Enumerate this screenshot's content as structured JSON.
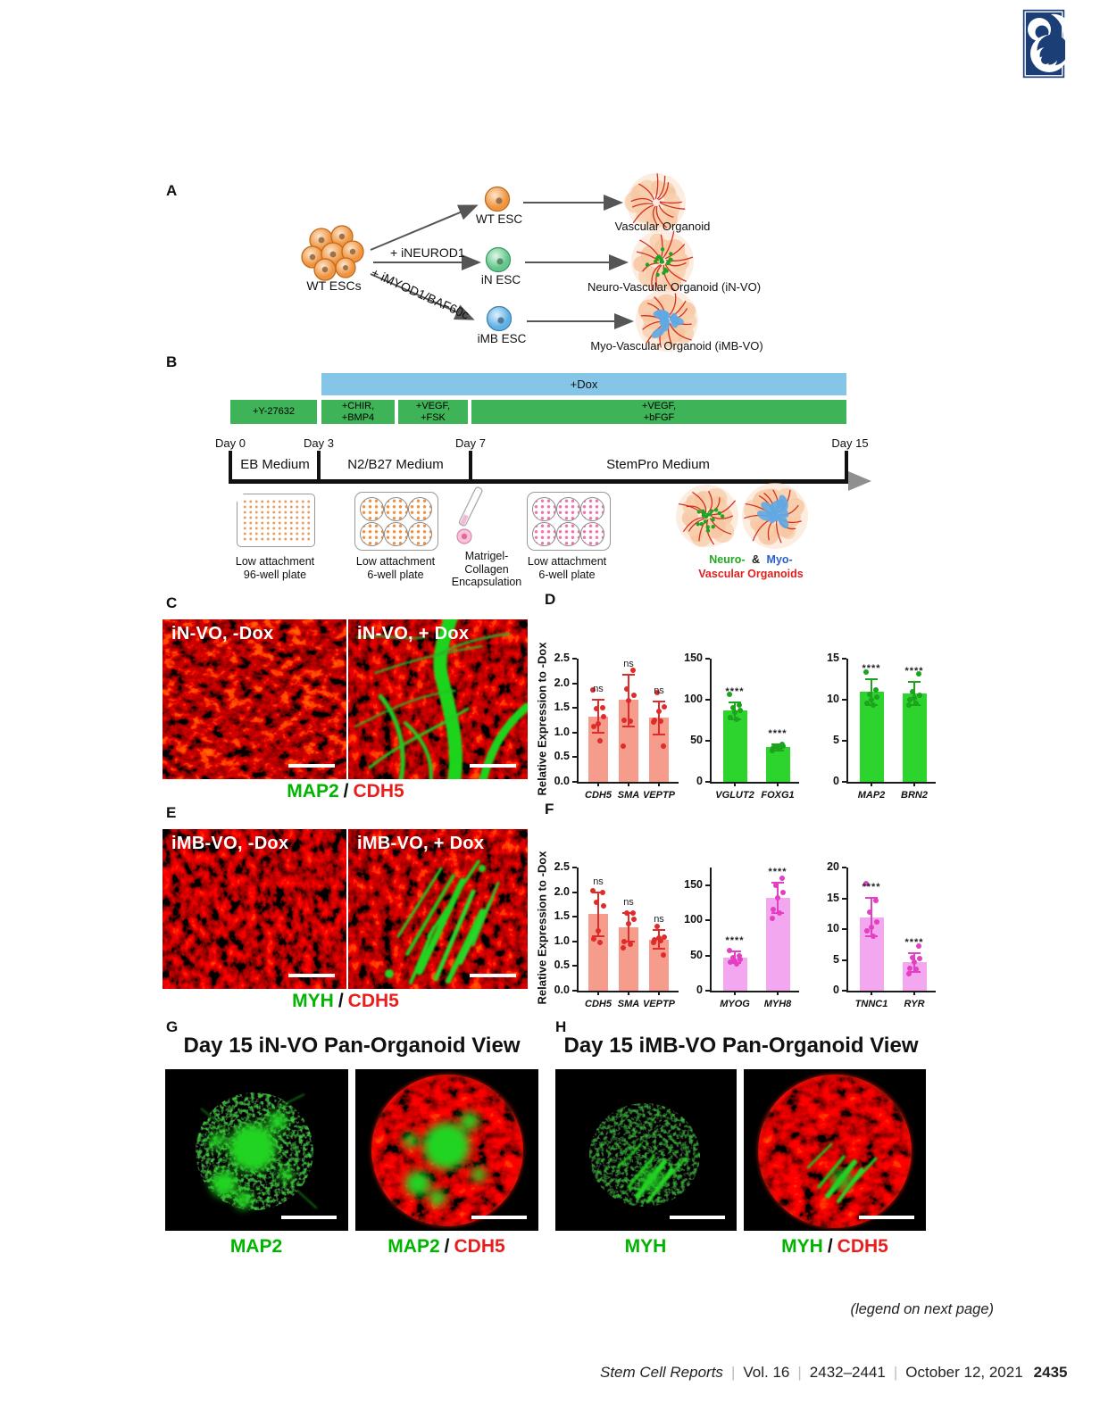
{
  "panels": {
    "A": {
      "label": "A",
      "source_label": "WT ESCs",
      "treatment_labels": [
        "+ iNEUROD1",
        "+ iMYOD1/BAF60c"
      ],
      "cell_labels": [
        "WT ESC",
        "iN ESC",
        "iMB ESC"
      ],
      "organoid_labels": [
        "Vascular Organoid",
        "Neuro-Vascular Organoid (iN-VO)",
        "Myo-Vascular Organoid (iMB-VO)"
      ]
    },
    "B": {
      "label": "B",
      "dox_label": "+Dox",
      "treatments": [
        {
          "lines": [
            "+Y-27632"
          ]
        },
        {
          "lines": [
            "+CHIR,",
            "+BMP4"
          ]
        },
        {
          "lines": [
            "+VEGF,",
            "+FSK"
          ]
        },
        {
          "lines": [
            "+VEGF,",
            "+bFGF"
          ]
        }
      ],
      "days": [
        "Day 0",
        "Day 3",
        "Day 7",
        "Day 15"
      ],
      "media": [
        "EB Medium",
        "N2/B27 Medium",
        "StemPro Medium"
      ],
      "stages": [
        {
          "lines": [
            "Low attachment",
            "96-well plate"
          ]
        },
        {
          "lines": [
            "Low attachment",
            "6-well plate"
          ]
        },
        {
          "lines": [
            "Matrigel-",
            "Collagen",
            "Encapsulation"
          ]
        },
        {
          "lines": [
            "Low attachment",
            "6-well plate"
          ]
        }
      ],
      "organoids_caption": {
        "neuro": "Neuro-",
        "amp": "&",
        "myo": "Myo-",
        "line2": "Vascular Organoids"
      }
    },
    "C": {
      "label": "C",
      "images": [
        {
          "title": "iN-VO, -Dox"
        },
        {
          "title": "iN-VO, + Dox"
        }
      ],
      "caption": {
        "green": "MAP2",
        "sep": "/",
        "red": "CDH5"
      }
    },
    "D": {
      "label": "D"
    },
    "E": {
      "label": "E",
      "images": [
        {
          "title": "iMB-VO, -Dox"
        },
        {
          "title": "iMB-VO, + Dox"
        }
      ],
      "caption": {
        "green": "MYH",
        "sep": "/",
        "red": "CDH5"
      }
    },
    "F": {
      "label": "F"
    },
    "G": {
      "label": "G",
      "title": "Day 15 iN-VO Pan-Organoid View",
      "captions": [
        {
          "green": "MAP2"
        },
        {
          "green": "MAP2",
          "sep": "/",
          "red": "CDH5"
        }
      ]
    },
    "H": {
      "label": "H",
      "title": "Day 15 iMB-VO Pan-Organoid View",
      "captions": [
        {
          "green": "MYH"
        },
        {
          "green": "MYH",
          "sep": "/",
          "red": "CDH5"
        }
      ]
    }
  },
  "chart_data": [
    {
      "id": "D-vascular-genes",
      "type": "bar",
      "title": "",
      "xlabel": "",
      "ylabel": "Relative Expression to -Dox",
      "ylim": [
        0,
        2.5
      ],
      "yticks": [
        {
          "v": 0,
          "label": "0.0"
        },
        {
          "v": 0.5,
          "label": "0.5"
        },
        {
          "v": 1,
          "label": "1.0"
        },
        {
          "v": 1.5,
          "label": "1.5"
        },
        {
          "v": 2,
          "label": "2.0"
        },
        {
          "v": 2.5,
          "label": "2.5"
        }
      ],
      "categories": [
        "CDH5",
        "SMA",
        "VEPTP"
      ],
      "values": [
        1.33,
        1.66,
        1.31
      ],
      "error_low": [
        1.0,
        1.13,
        0.96
      ],
      "error_high": [
        1.66,
        2.18,
        1.63
      ],
      "significance": [
        "ns",
        "ns",
        "ns"
      ],
      "points": [
        [
          1.86,
          1.5,
          1.48,
          1.33,
          1.17,
          1.12,
          0.83
        ],
        [
          2.26,
          1.88,
          1.75,
          1.65,
          1.25,
          1.24,
          0.73
        ],
        [
          1.81,
          1.52,
          1.43,
          1.25,
          1.23,
          1.22,
          0.72
        ]
      ],
      "bar_color": "#f59c8c",
      "point_color": "#e02b2b"
    },
    {
      "id": "D-neuronal-genes-1",
      "type": "bar",
      "title": "",
      "xlabel": "",
      "ylabel": "",
      "ylim": [
        0,
        150
      ],
      "yticks": [
        {
          "v": 0,
          "label": "0"
        },
        {
          "v": 50,
          "label": "50"
        },
        {
          "v": 100,
          "label": "100"
        },
        {
          "v": 150,
          "label": "150"
        }
      ],
      "categories": [
        "VGLUT2",
        "FOXG1"
      ],
      "values": [
        87,
        42
      ],
      "error_low": [
        76,
        38
      ],
      "error_high": [
        97,
        46
      ],
      "significance": [
        "****",
        "****"
      ],
      "points": [
        [
          107,
          93,
          90,
          87,
          85,
          78,
          76
        ],
        [
          46,
          44,
          43,
          42,
          41,
          40,
          38
        ]
      ],
      "bar_color": "#2ed42e",
      "point_color": "#1da31d"
    },
    {
      "id": "D-neuronal-genes-2",
      "type": "bar",
      "title": "",
      "xlabel": "",
      "ylabel": "",
      "ylim": [
        0,
        15
      ],
      "yticks": [
        {
          "v": 0,
          "label": "0"
        },
        {
          "v": 5,
          "label": "5"
        },
        {
          "v": 10,
          "label": "10"
        },
        {
          "v": 15,
          "label": "15"
        }
      ],
      "categories": [
        "MAP2",
        "BRN2"
      ],
      "values": [
        11.0,
        10.8
      ],
      "error_low": [
        9.4,
        9.4
      ],
      "error_high": [
        12.5,
        12.2
      ],
      "significance": [
        "****",
        "****"
      ],
      "points": [
        [
          13.4,
          11.2,
          10.6,
          10.3,
          10.0,
          9.6,
          9.3
        ],
        [
          13.1,
          11.0,
          10.5,
          10.2,
          10.0,
          9.6,
          9.3
        ]
      ],
      "bar_color": "#2ed42e",
      "point_color": "#1da31d"
    },
    {
      "id": "F-vascular-genes",
      "type": "bar",
      "title": "",
      "xlabel": "",
      "ylabel": "Relative Expression to -Dox",
      "ylim": [
        0,
        2.5
      ],
      "yticks": [
        {
          "v": 0,
          "label": "0.0"
        },
        {
          "v": 0.5,
          "label": "0.5"
        },
        {
          "v": 1,
          "label": "1.0"
        },
        {
          "v": 1.5,
          "label": "1.5"
        },
        {
          "v": 2,
          "label": "2.0"
        },
        {
          "v": 2.5,
          "label": "2.5"
        }
      ],
      "categories": [
        "CDH5",
        "SMA",
        "VEPTP"
      ],
      "values": [
        1.55,
        1.28,
        1.04
      ],
      "error_low": [
        1.1,
        1.0,
        0.85
      ],
      "error_high": [
        2.0,
        1.57,
        1.24
      ],
      "significance": [
        "ns",
        "ns",
        "ns"
      ],
      "points": [
        [
          2.02,
          1.99,
          1.8,
          1.73,
          1.22,
          1.05,
          0.98
        ],
        [
          1.58,
          1.57,
          1.45,
          1.35,
          1.0,
          0.95,
          0.87
        ],
        [
          1.3,
          1.08,
          1.06,
          1.04,
          1.02,
          0.98,
          0.73
        ]
      ],
      "bar_color": "#f59c8c",
      "point_color": "#e02b2b"
    },
    {
      "id": "F-muscle-genes-1",
      "type": "bar",
      "title": "",
      "xlabel": "",
      "ylabel": "",
      "ylim": [
        0,
        175
      ],
      "yticks": [
        {
          "v": 0,
          "label": "0"
        },
        {
          "v": 50,
          "label": "50"
        },
        {
          "v": 100,
          "label": "100"
        },
        {
          "v": 150,
          "label": "150"
        }
      ],
      "categories": [
        "MYOG",
        "MYH8"
      ],
      "values": [
        47,
        132
      ],
      "error_low": [
        39,
        110
      ],
      "error_high": [
        56,
        153
      ],
      "significance": [
        "****",
        "****"
      ],
      "points": [
        [
          57,
          50,
          47,
          44,
          42,
          40,
          38
        ],
        [
          160,
          150,
          140,
          132,
          115,
          110,
          103
        ]
      ],
      "bar_color": "#f3a7ef",
      "point_color": "#e33fc3"
    },
    {
      "id": "F-muscle-genes-2",
      "type": "bar",
      "title": "",
      "xlabel": "",
      "ylabel": "",
      "ylim": [
        0,
        20
      ],
      "yticks": [
        {
          "v": 0,
          "label": "0"
        },
        {
          "v": 5,
          "label": "5"
        },
        {
          "v": 10,
          "label": "10"
        },
        {
          "v": 15,
          "label": "15"
        },
        {
          "v": 20,
          "label": "20"
        }
      ],
      "categories": [
        "TNNC1",
        "RYR"
      ],
      "values": [
        11.9,
        4.6
      ],
      "error_low": [
        8.8,
        3.1
      ],
      "error_high": [
        15.1,
        6.1
      ],
      "significance": [
        "****",
        "****"
      ],
      "points": [
        [
          17.4,
          14.7,
          12.8,
          11.1,
          10.3,
          9.7,
          8.8
        ],
        [
          7.2,
          5.4,
          5.2,
          4.6,
          3.6,
          3.5,
          2.8
        ]
      ],
      "bar_color": "#f3a7ef",
      "point_color": "#e33fc3"
    }
  ],
  "footer": {
    "legend_note": "(legend on next page)",
    "journal": "Stem Cell Reports",
    "volume": "Vol. 16",
    "pages": "2432–2441",
    "date": "October 12, 2021",
    "page_number": "2435"
  },
  "colors": {
    "dox_blue": "#85c6e8",
    "treatment_green": "#3eb357",
    "salmon_bar": "#f59c8c",
    "red_dot": "#e02b2b",
    "green_bar": "#2ed42e",
    "pink_bar": "#f3a7ef",
    "caption_green": "#00b400",
    "caption_red": "#e81f1f",
    "logo_navy": "#1c3e77"
  }
}
